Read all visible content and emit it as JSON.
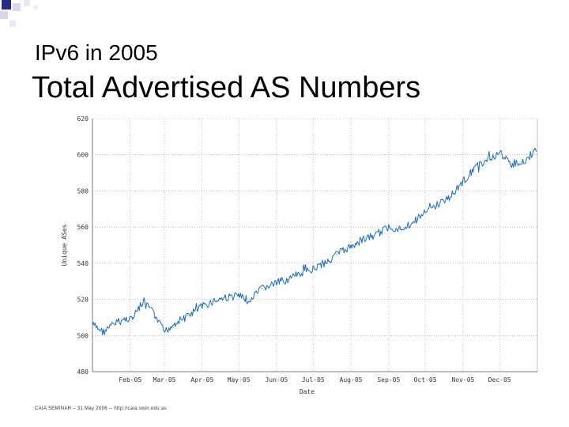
{
  "slide": {
    "subtitle": "IPv6 in 2005",
    "title": "Total Advertised AS Numbers",
    "footer": "CAIA SEMINAR – 31 May 2006 -- http://caia.swin.edu.au"
  },
  "colors": {
    "series": "#1a6fc4",
    "grid": "#9a9a9a",
    "axis": "#555555",
    "bullet_dark": "#2a2a8a",
    "bullet_light": "#d7d7ef"
  },
  "chart_data": {
    "type": "line",
    "title": "",
    "xlabel": "Date",
    "ylabel": "Unique ASes",
    "ylim": [
      480,
      620
    ],
    "yticks": [
      "620",
      "600",
      "580",
      "560",
      "540",
      "520",
      "500",
      "480"
    ],
    "xticks": [
      "Feb-05",
      "Mar-05",
      "Apr-05",
      "May-05",
      "Jun-05",
      "Jul-05",
      "Aug-05",
      "Sep-05",
      "Oct-05",
      "Nov-05",
      "Dec-05"
    ],
    "grid": true,
    "x_range": [
      "2005-01-01",
      "2006-01-01"
    ],
    "series": [
      {
        "x": [
          "2005-01-01",
          "2005-01-10",
          "2005-01-20",
          "2005-01-28",
          "2005-02-03",
          "2005-02-10",
          "2005-02-16",
          "2005-02-22",
          "2005-03-01",
          "2005-03-10",
          "2005-03-20",
          "2005-04-01",
          "2005-04-10",
          "2005-04-20",
          "2005-05-01",
          "2005-05-10",
          "2005-05-20",
          "2005-06-01",
          "2005-06-10",
          "2005-06-20",
          "2005-07-01",
          "2005-07-10",
          "2005-07-20",
          "2005-08-01",
          "2005-08-10",
          "2005-08-20",
          "2005-09-01",
          "2005-09-10",
          "2005-09-20",
          "2005-10-01",
          "2005-10-10",
          "2005-10-20",
          "2005-11-01",
          "2005-11-10",
          "2005-11-20",
          "2005-12-01",
          "2005-12-10",
          "2005-12-20",
          "2005-12-31"
        ],
        "values": [
          506,
          502,
          507,
          509,
          510,
          517,
          516,
          510,
          502,
          507,
          511,
          516,
          519,
          521,
          522,
          519,
          526,
          529,
          531,
          534,
          537,
          540,
          545,
          549,
          553,
          555,
          560,
          559,
          562,
          568,
          572,
          576,
          585,
          592,
          597,
          601,
          595,
          596,
          602
        ]
      }
    ]
  }
}
